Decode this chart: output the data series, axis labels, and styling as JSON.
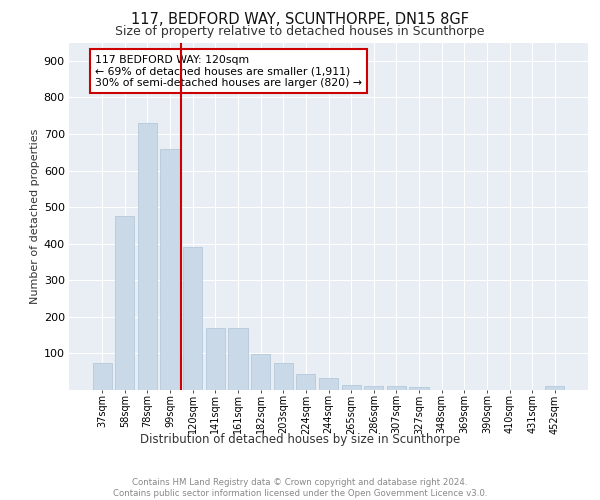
{
  "title1": "117, BEDFORD WAY, SCUNTHORPE, DN15 8GF",
  "title2": "Size of property relative to detached houses in Scunthorpe",
  "xlabel": "Distribution of detached houses by size in Scunthorpe",
  "ylabel": "Number of detached properties",
  "footer": "Contains HM Land Registry data © Crown copyright and database right 2024.\nContains public sector information licensed under the Open Government Licence v3.0.",
  "categories": [
    "37sqm",
    "58sqm",
    "78sqm",
    "99sqm",
    "120sqm",
    "141sqm",
    "161sqm",
    "182sqm",
    "203sqm",
    "224sqm",
    "244sqm",
    "265sqm",
    "286sqm",
    "307sqm",
    "327sqm",
    "348sqm",
    "369sqm",
    "390sqm",
    "410sqm",
    "431sqm",
    "452sqm"
  ],
  "values": [
    75,
    475,
    730,
    658,
    390,
    170,
    170,
    98,
    75,
    45,
    33,
    15,
    12,
    10,
    8,
    0,
    0,
    0,
    0,
    0,
    10
  ],
  "bar_color": "#c9d9e8",
  "bar_edge_color": "#adc4d8",
  "highlight_line_color": "#cc0000",
  "annotation_text": "117 BEDFORD WAY: 120sqm\n← 69% of detached houses are smaller (1,911)\n30% of semi-detached houses are larger (820) →",
  "annotation_box_color": "#ffffff",
  "annotation_box_edge": "#cc0000",
  "ylim": [
    0,
    950
  ],
  "yticks": [
    0,
    100,
    200,
    300,
    400,
    500,
    600,
    700,
    800,
    900
  ],
  "plot_bg_color": "#e8eef4",
  "grid_color": "#ffffff"
}
